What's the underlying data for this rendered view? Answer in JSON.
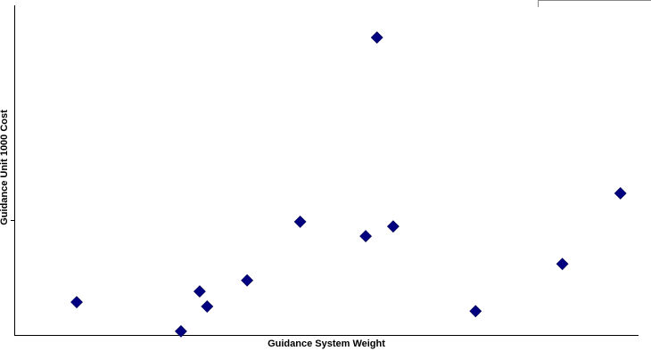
{
  "chart_data": {
    "type": "scatter",
    "title": "",
    "xlabel": "Guidance System Weight",
    "ylabel": "Guidance Unit 1000 Cost",
    "xlim": [
      0,
      100
    ],
    "ylim": [
      0,
      100
    ],
    "grid": false,
    "legend": "none",
    "marker": "diamond",
    "marker_color": "#000080",
    "points": [
      {
        "x": 10.0,
        "y": 9.8
      },
      {
        "x": 26.7,
        "y": 1.1
      },
      {
        "x": 29.7,
        "y": 13.0
      },
      {
        "x": 30.9,
        "y": 8.5
      },
      {
        "x": 37.3,
        "y": 16.3
      },
      {
        "x": 45.8,
        "y": 33.8
      },
      {
        "x": 56.3,
        "y": 29.5
      },
      {
        "x": 58.1,
        "y": 88.8
      },
      {
        "x": 60.7,
        "y": 32.4
      },
      {
        "x": 73.9,
        "y": 7.1
      },
      {
        "x": 87.8,
        "y": 21.2
      },
      {
        "x": 97.1,
        "y": 42.3
      }
    ]
  }
}
